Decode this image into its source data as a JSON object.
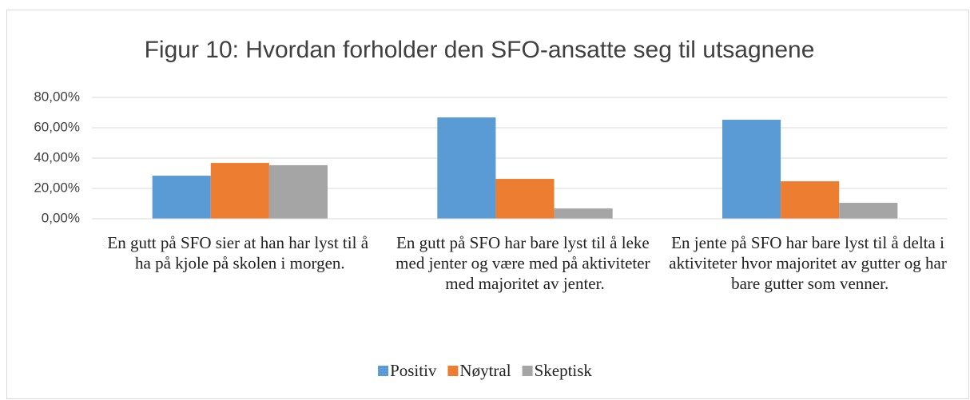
{
  "chart_data": {
    "type": "bar",
    "title": "Figur 10: Hvordan forholder den SFO-ansatte seg til utsagnene",
    "categories": [
      "En gutt på SFO sier at han har lyst til å ha på kjole på skolen i morgen.",
      "En gutt på SFO har bare lyst til å leke med jenter og være med på aktiviteter med majoritet av jenter.",
      "En jente på SFO har bare lyst til å delta i aktiviteter hvor majoritet av gutter og har bare gutter som venner."
    ],
    "series": [
      {
        "name": "Positiv",
        "color": "#5b9bd5",
        "values": [
          28.4,
          66.8,
          65.3
        ]
      },
      {
        "name": "Nøytral",
        "color": "#ed7d31",
        "values": [
          36.8,
          26.3,
          24.7
        ]
      },
      {
        "name": "Skeptisk",
        "color": "#a5a5a5",
        "values": [
          35.3,
          6.8,
          10.5
        ]
      }
    ],
    "ylim": [
      0,
      80
    ],
    "yticks": [
      {
        "value": 0,
        "label": "0,00%"
      },
      {
        "value": 20,
        "label": "20,00%"
      },
      {
        "value": 40,
        "label": "40,00%"
      },
      {
        "value": 60,
        "label": "60,00%"
      },
      {
        "value": 80,
        "label": "80,00%"
      }
    ],
    "grid": true,
    "legend": "bottom"
  }
}
